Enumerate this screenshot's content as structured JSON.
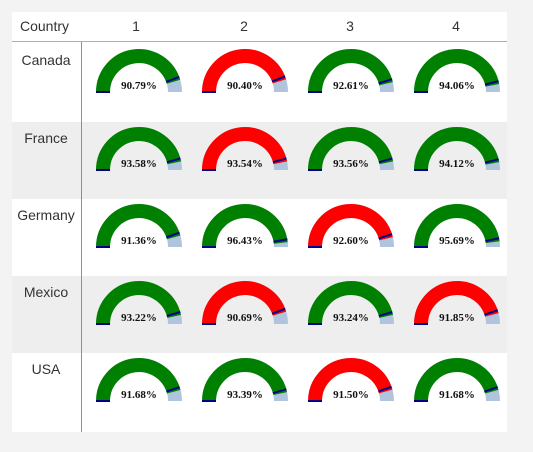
{
  "table": {
    "header": {
      "country_label": "Country",
      "columns": [
        "1",
        "2",
        "3",
        "4"
      ]
    },
    "colors": {
      "good": "#008000",
      "bad": "#ff0000",
      "remainder": "#b0c4de",
      "target": "#00008b"
    },
    "rows": [
      {
        "country": "Canada",
        "cells": [
          {
            "label": "90.79%",
            "value": 0.9079,
            "status": "good"
          },
          {
            "label": "90.40%",
            "value": 0.904,
            "status": "bad"
          },
          {
            "label": "92.61%",
            "value": 0.9261,
            "status": "good"
          },
          {
            "label": "94.06%",
            "value": 0.9406,
            "status": "good"
          }
        ]
      },
      {
        "country": "France",
        "cells": [
          {
            "label": "93.58%",
            "value": 0.9358,
            "status": "good"
          },
          {
            "label": "93.54%",
            "value": 0.9354,
            "status": "bad"
          },
          {
            "label": "93.56%",
            "value": 0.9356,
            "status": "good"
          },
          {
            "label": "94.12%",
            "value": 0.9412,
            "status": "good"
          }
        ]
      },
      {
        "country": "Germany",
        "cells": [
          {
            "label": "91.36%",
            "value": 0.9136,
            "status": "good"
          },
          {
            "label": "96.43%",
            "value": 0.9643,
            "status": "good"
          },
          {
            "label": "92.60%",
            "value": 0.926,
            "status": "bad"
          },
          {
            "label": "95.69%",
            "value": 0.9569,
            "status": "good"
          }
        ]
      },
      {
        "country": "Mexico",
        "cells": [
          {
            "label": "93.22%",
            "value": 0.9322,
            "status": "good"
          },
          {
            "label": "90.69%",
            "value": 0.9069,
            "status": "bad"
          },
          {
            "label": "93.24%",
            "value": 0.9324,
            "status": "good"
          },
          {
            "label": "91.85%",
            "value": 0.9185,
            "status": "bad"
          }
        ]
      },
      {
        "country": "USA",
        "cells": [
          {
            "label": "91.68%",
            "value": 0.9168,
            "status": "good"
          },
          {
            "label": "93.39%",
            "value": 0.9339,
            "status": "good"
          },
          {
            "label": "91.50%",
            "value": 0.915,
            "status": "bad"
          },
          {
            "label": "91.68%",
            "value": 0.9168,
            "status": "good"
          }
        ]
      }
    ]
  }
}
